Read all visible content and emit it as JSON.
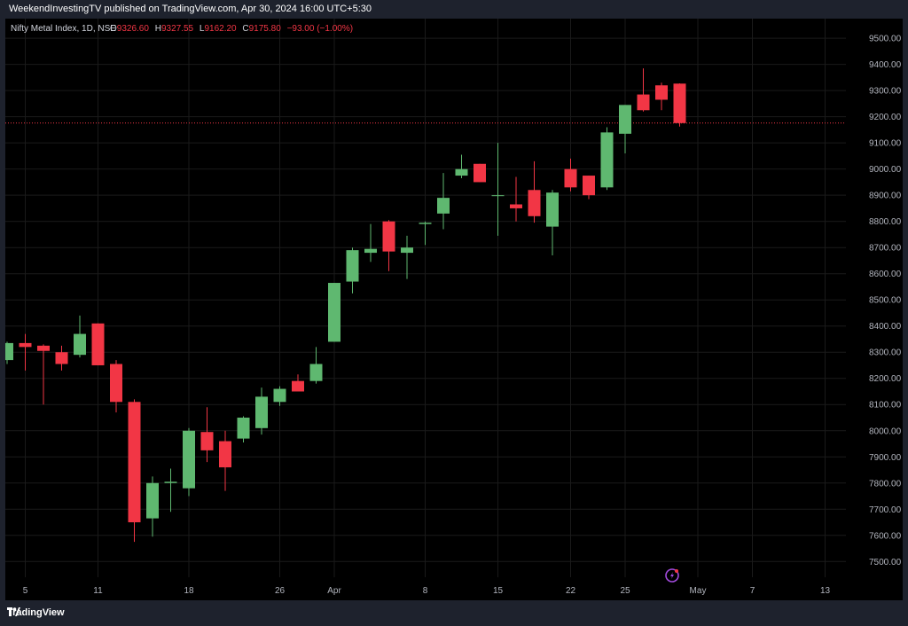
{
  "header": {
    "publish_text": "WeekendInvestingTV published on TradingView.com, Apr 30, 2024 16:00 UTC+5:30"
  },
  "legend": {
    "symbol": "Nifty Metal Index, 1D, NSE",
    "o_label": "O",
    "o_value": "9326.60",
    "h_label": "H",
    "h_value": "9327.55",
    "l_label": "L",
    "l_value": "9162.20",
    "c_label": "C",
    "c_value": "9175.80",
    "change": "−93.00 (−1.00%)"
  },
  "footer": {
    "brand": "TradingView"
  },
  "colors": {
    "up": "#5fb870",
    "down": "#f23645",
    "grid": "#1a1a1a",
    "axis_text": "#b2b5be",
    "price_line": "#f23645",
    "accent": "#a24bdc"
  },
  "chart_data": {
    "type": "candlestick",
    "title": "Nifty Metal Index, 1D, NSE",
    "ylim": [
      7440,
      9575
    ],
    "y_ticks": [
      7500,
      7600,
      7700,
      7800,
      7900,
      8000,
      8100,
      8200,
      8300,
      8400,
      8500,
      8600,
      8700,
      8800,
      8900,
      9000,
      9100,
      9200,
      9300,
      9400,
      9500
    ],
    "x_tick_labels": [
      {
        "label": "5",
        "slot": 1
      },
      {
        "label": "11",
        "slot": 5
      },
      {
        "label": "18",
        "slot": 10
      },
      {
        "label": "26",
        "slot": 15
      },
      {
        "label": "Apr",
        "slot": 18
      },
      {
        "label": "8",
        "slot": 23
      },
      {
        "label": "15",
        "slot": 27
      },
      {
        "label": "22",
        "slot": 31
      },
      {
        "label": "25",
        "slot": 34
      },
      {
        "label": "May",
        "slot": 38
      },
      {
        "label": "7",
        "slot": 41
      },
      {
        "label": "13",
        "slot": 45
      }
    ],
    "last_close": 9175.8,
    "candles": [
      {
        "o": 8270,
        "h": 8340,
        "l": 8255,
        "c": 8335
      },
      {
        "o": 8335,
        "h": 8370,
        "l": 8230,
        "c": 8320
      },
      {
        "o": 8325,
        "h": 8330,
        "l": 8100,
        "c": 8305
      },
      {
        "o": 8300,
        "h": 8325,
        "l": 8230,
        "c": 8255
      },
      {
        "o": 8290,
        "h": 8440,
        "l": 8280,
        "c": 8370
      },
      {
        "o": 8410,
        "h": 8410,
        "l": 8250,
        "c": 8250
      },
      {
        "o": 8255,
        "h": 8270,
        "l": 8070,
        "c": 8110
      },
      {
        "o": 8110,
        "h": 8120,
        "l": 7575,
        "c": 7650
      },
      {
        "o": 7665,
        "h": 7825,
        "l": 7595,
        "c": 7800
      },
      {
        "o": 7800,
        "h": 7855,
        "l": 7690,
        "c": 7805
      },
      {
        "o": 7780,
        "h": 8010,
        "l": 7750,
        "c": 8000
      },
      {
        "o": 7995,
        "h": 8090,
        "l": 7880,
        "c": 7925
      },
      {
        "o": 7960,
        "h": 8000,
        "l": 7770,
        "c": 7860
      },
      {
        "o": 7970,
        "h": 8055,
        "l": 7955,
        "c": 8050
      },
      {
        "o": 8010,
        "h": 8165,
        "l": 7985,
        "c": 8130
      },
      {
        "o": 8110,
        "h": 8170,
        "l": 8095,
        "c": 8160
      },
      {
        "o": 8190,
        "h": 8215,
        "l": 8150,
        "c": 8150
      },
      {
        "o": 8190,
        "h": 8320,
        "l": 8180,
        "c": 8255
      },
      {
        "o": 8340,
        "h": 8565,
        "l": 8340,
        "c": 8565
      },
      {
        "o": 8570,
        "h": 8700,
        "l": 8525,
        "c": 8690
      },
      {
        "o": 8680,
        "h": 8790,
        "l": 8645,
        "c": 8695
      },
      {
        "o": 8800,
        "h": 8805,
        "l": 8610,
        "c": 8685
      },
      {
        "o": 8680,
        "h": 8745,
        "l": 8580,
        "c": 8700
      },
      {
        "o": 8790,
        "h": 8800,
        "l": 8710,
        "c": 8795
      },
      {
        "o": 8830,
        "h": 8985,
        "l": 8770,
        "c": 8890
      },
      {
        "o": 8975,
        "h": 9055,
        "l": 8965,
        "c": 9000
      },
      {
        "o": 9020,
        "h": 9020,
        "l": 8950,
        "c": 8950
      },
      {
        "o": 8900,
        "h": 9100,
        "l": 8745,
        "c": 8900
      },
      {
        "o": 8865,
        "h": 8970,
        "l": 8800,
        "c": 8850
      },
      {
        "o": 8920,
        "h": 9030,
        "l": 8795,
        "c": 8820
      },
      {
        "o": 8780,
        "h": 8920,
        "l": 8670,
        "c": 8910
      },
      {
        "o": 9000,
        "h": 9040,
        "l": 8915,
        "c": 8930
      },
      {
        "o": 8975,
        "h": 8975,
        "l": 8885,
        "c": 8900
      },
      {
        "o": 8930,
        "h": 9160,
        "l": 8920,
        "c": 9140
      },
      {
        "o": 9135,
        "h": 9245,
        "l": 9060,
        "c": 9245
      },
      {
        "o": 9285,
        "h": 9385,
        "l": 9220,
        "c": 9225
      },
      {
        "o": 9320,
        "h": 9330,
        "l": 9225,
        "c": 9265
      },
      {
        "o": 9326.6,
        "h": 9327.55,
        "l": 9162.2,
        "c": 9175.8
      }
    ]
  }
}
